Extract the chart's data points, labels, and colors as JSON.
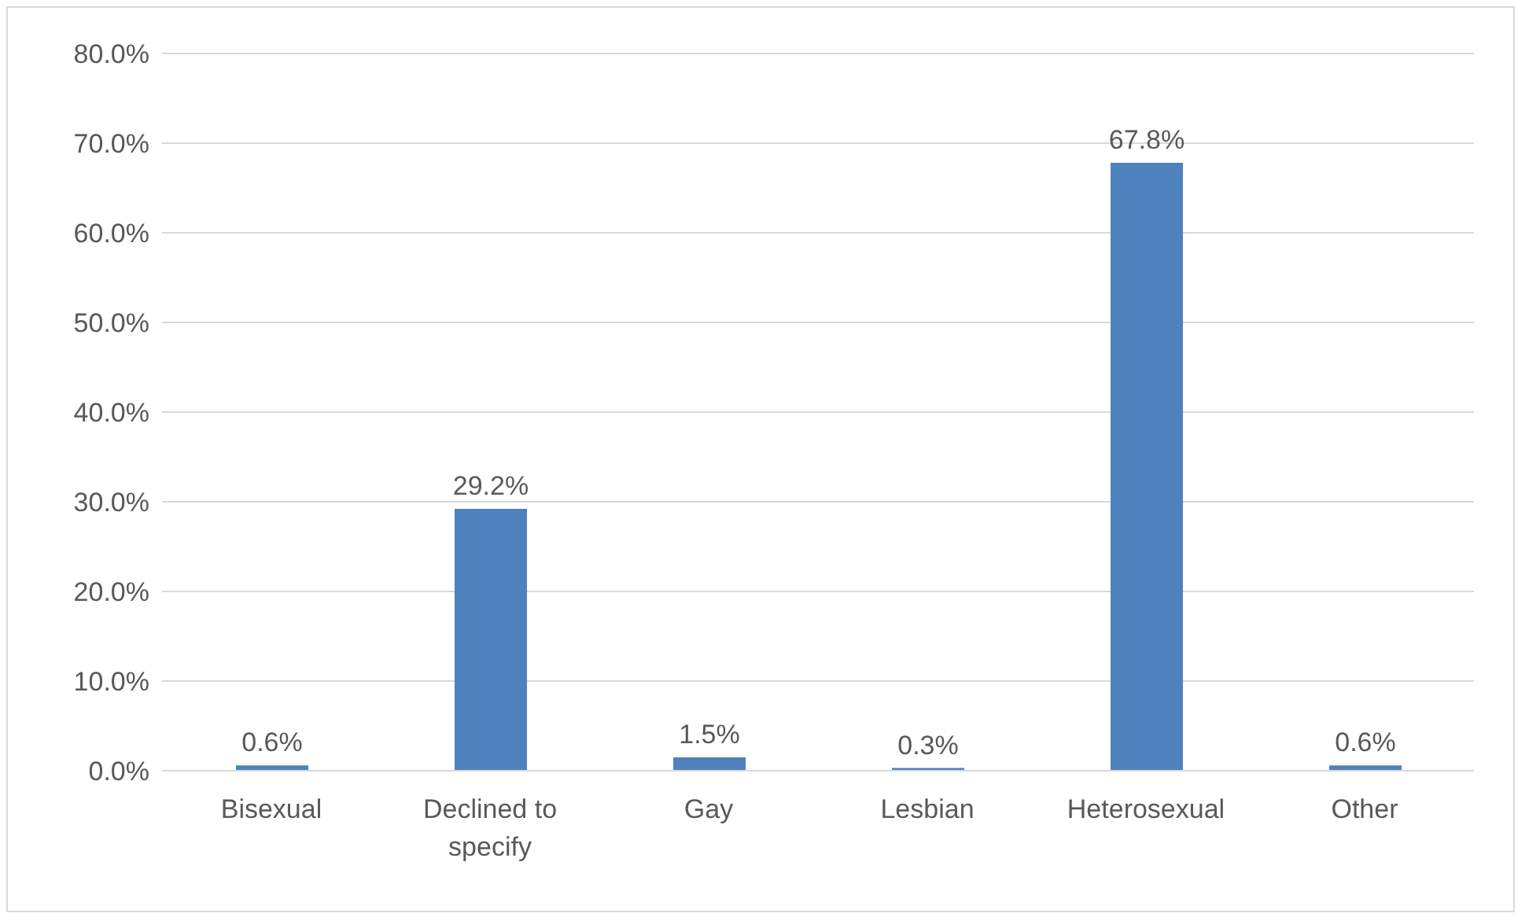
{
  "chart_data": {
    "type": "bar",
    "categories": [
      "Bisexual",
      "Declined to specify",
      "Gay",
      "Lesbian",
      "Heterosexual",
      "Other"
    ],
    "values": [
      0.6,
      29.2,
      1.5,
      0.3,
      67.8,
      0.6
    ],
    "value_labels": [
      "0.6%",
      "29.2%",
      "1.5%",
      "0.3%",
      "67.8%",
      "0.6%"
    ],
    "color": "#4e81bd",
    "ylim": [
      0,
      80
    ],
    "yticks": [
      {
        "value": 0,
        "label": "0.0%"
      },
      {
        "value": 10,
        "label": "10.0%"
      },
      {
        "value": 20,
        "label": "20.0%"
      },
      {
        "value": 30,
        "label": "30.0%"
      },
      {
        "value": 40,
        "label": "40.0%"
      },
      {
        "value": 50,
        "label": "50.0%"
      },
      {
        "value": 60,
        "label": "60.0%"
      },
      {
        "value": 70,
        "label": "70.0%"
      },
      {
        "value": 80,
        "label": "80.0%"
      }
    ],
    "grid": "y",
    "legend": false
  }
}
